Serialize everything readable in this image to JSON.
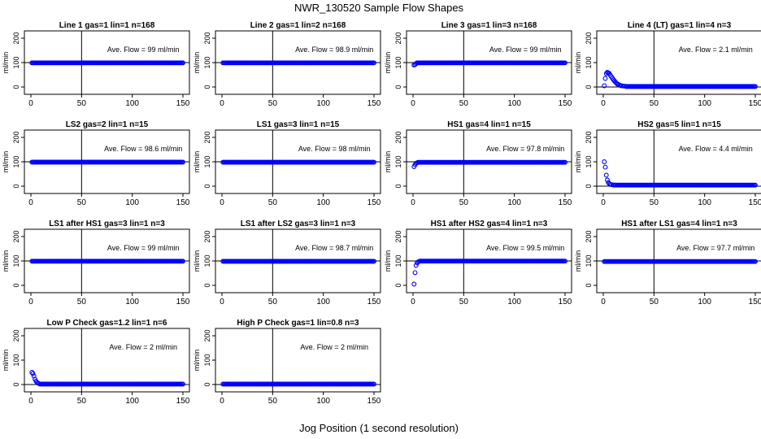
{
  "figure": {
    "title": "NWR_130520  Sample Flow Shapes",
    "xlabel": "Jog Position (1 second resolution)"
  },
  "chart_data": [
    {
      "type": "scatter",
      "title": "Line 1 gas=1 lin=1 n=168",
      "annotation": "Ave. Flow = 99  ml/min",
      "ylabel": "ml/min",
      "xlim": [
        0,
        150
      ],
      "ylim": [
        0,
        200
      ],
      "xticks": [
        0,
        50,
        100,
        150
      ],
      "yticks": [
        0,
        100,
        200
      ],
      "vline": 50,
      "hline": 100,
      "color": "#0000ff",
      "shape": "flat",
      "level": 99
    },
    {
      "type": "scatter",
      "title": "Line 2 gas=1 lin=2 n=168",
      "annotation": "Ave. Flow = 98.9  ml/min",
      "ylabel": "ml/min",
      "xlim": [
        0,
        150
      ],
      "ylim": [
        0,
        200
      ],
      "xticks": [
        0,
        50,
        100,
        150
      ],
      "yticks": [
        0,
        100,
        200
      ],
      "vline": 50,
      "hline": 100,
      "color": "#0000ff",
      "shape": "flat",
      "level": 98.9
    },
    {
      "type": "scatter",
      "title": "Line 3 gas=1 lin=3 n=168",
      "annotation": "Ave. Flow = 99  ml/min",
      "ylabel": "ml/min",
      "xlim": [
        0,
        150
      ],
      "ylim": [
        0,
        200
      ],
      "xticks": [
        0,
        50,
        100,
        150
      ],
      "yticks": [
        0,
        100,
        200
      ],
      "vline": 50,
      "hline": 100,
      "color": "#0000ff",
      "shape": "rise",
      "level": 99,
      "start": [
        {
          "x": 1,
          "y": 90
        },
        {
          "x": 2,
          "y": 92
        },
        {
          "x": 3,
          "y": 96
        }
      ]
    },
    {
      "type": "scatter",
      "title": "Line 4 (LT) gas=1 lin=4 n=3",
      "annotation": "Ave. Flow = 2.1  ml/min",
      "ylabel": "ml/min",
      "xlim": [
        0,
        150
      ],
      "ylim": [
        0,
        200
      ],
      "xticks": [
        0,
        50,
        100,
        150
      ],
      "yticks": [
        0,
        100,
        200
      ],
      "vline": 50,
      "hline": 0,
      "color": "#0000ff",
      "shape": "spike",
      "level": 2.1,
      "start": [
        {
          "x": 1,
          "y": 5
        },
        {
          "x": 2,
          "y": 35
        },
        {
          "x": 3,
          "y": 55
        },
        {
          "x": 4,
          "y": 60
        },
        {
          "x": 5,
          "y": 58
        },
        {
          "x": 6,
          "y": 55
        },
        {
          "x": 7,
          "y": 48
        },
        {
          "x": 8,
          "y": 42
        },
        {
          "x": 9,
          "y": 36
        },
        {
          "x": 10,
          "y": 30
        },
        {
          "x": 11,
          "y": 25
        },
        {
          "x": 12,
          "y": 20
        },
        {
          "x": 13,
          "y": 16
        },
        {
          "x": 14,
          "y": 12
        },
        {
          "x": 15,
          "y": 10
        },
        {
          "x": 16,
          "y": 8
        },
        {
          "x": 17,
          "y": 6
        },
        {
          "x": 18,
          "y": 5
        },
        {
          "x": 20,
          "y": 4
        },
        {
          "x": 22,
          "y": 3
        }
      ]
    },
    {
      "type": "scatter",
      "title": "LS2 gas=2 lin=1 n=15",
      "annotation": "Ave. Flow = 98.6  ml/min",
      "ylabel": "ml/min",
      "xlim": [
        0,
        150
      ],
      "ylim": [
        0,
        200
      ],
      "xticks": [
        0,
        50,
        100,
        150
      ],
      "yticks": [
        0,
        100,
        200
      ],
      "vline": 50,
      "hline": 100,
      "color": "#0000ff",
      "shape": "flat",
      "level": 98.6
    },
    {
      "type": "scatter",
      "title": "LS1 gas=3 lin=1 n=15",
      "annotation": "Ave. Flow = 98  ml/min",
      "ylabel": "ml/min",
      "xlim": [
        0,
        150
      ],
      "ylim": [
        0,
        200
      ],
      "xticks": [
        0,
        50,
        100,
        150
      ],
      "yticks": [
        0,
        100,
        200
      ],
      "vline": 50,
      "hline": 100,
      "color": "#0000ff",
      "shape": "flat",
      "level": 98
    },
    {
      "type": "scatter",
      "title": "HS1 gas=4 lin=1 n=15",
      "annotation": "Ave. Flow = 97.8  ml/min",
      "ylabel": "ml/min",
      "xlim": [
        0,
        150
      ],
      "ylim": [
        0,
        200
      ],
      "xticks": [
        0,
        50,
        100,
        150
      ],
      "yticks": [
        0,
        100,
        200
      ],
      "vline": 50,
      "hline": 100,
      "color": "#0000ff",
      "shape": "rise",
      "level": 97.8,
      "start": [
        {
          "x": 1,
          "y": 80
        },
        {
          "x": 2,
          "y": 88
        },
        {
          "x": 3,
          "y": 93
        },
        {
          "x": 4,
          "y": 96
        }
      ]
    },
    {
      "type": "scatter",
      "title": "HS2 gas=5 lin=1 n=15",
      "annotation": "Ave. Flow = 4.4  ml/min",
      "ylabel": "ml/min",
      "xlim": [
        0,
        150
      ],
      "ylim": [
        0,
        200
      ],
      "xticks": [
        0,
        50,
        100,
        150
      ],
      "yticks": [
        0,
        100,
        200
      ],
      "vline": 50,
      "hline": 0,
      "color": "#0000ff",
      "shape": "decay",
      "level": 4.4,
      "start": [
        {
          "x": 1,
          "y": 100
        },
        {
          "x": 2,
          "y": 78
        },
        {
          "x": 3,
          "y": 45
        },
        {
          "x": 4,
          "y": 25
        },
        {
          "x": 5,
          "y": 15
        },
        {
          "x": 6,
          "y": 10
        },
        {
          "x": 7,
          "y": 8
        },
        {
          "x": 8,
          "y": 6
        },
        {
          "x": 10,
          "y": 5
        }
      ]
    },
    {
      "type": "scatter",
      "title": "LS1 after HS1 gas=3 lin=1 n=3",
      "annotation": "Ave. Flow = 99  ml/min",
      "ylabel": "ml/min",
      "xlim": [
        0,
        150
      ],
      "ylim": [
        0,
        200
      ],
      "xticks": [
        0,
        50,
        100,
        150
      ],
      "yticks": [
        0,
        100,
        200
      ],
      "vline": 50,
      "hline": 100,
      "color": "#0000ff",
      "shape": "flat",
      "level": 99
    },
    {
      "type": "scatter",
      "title": "LS1 after LS2 gas=3 lin=1 n=3",
      "annotation": "Ave. Flow = 98.7  ml/min",
      "ylabel": "ml/min",
      "xlim": [
        0,
        150
      ],
      "ylim": [
        0,
        200
      ],
      "xticks": [
        0,
        50,
        100,
        150
      ],
      "yticks": [
        0,
        100,
        200
      ],
      "vline": 50,
      "hline": 100,
      "color": "#0000ff",
      "shape": "flat",
      "level": 98.7
    },
    {
      "type": "scatter",
      "title": "HS1 after HS2 gas=4 lin=1 n=3",
      "annotation": "Ave. Flow = 99.5  ml/min",
      "ylabel": "ml/min",
      "xlim": [
        0,
        150
      ],
      "ylim": [
        0,
        200
      ],
      "xticks": [
        0,
        50,
        100,
        150
      ],
      "yticks": [
        0,
        100,
        200
      ],
      "vline": 50,
      "hline": 100,
      "color": "#0000ff",
      "shape": "rise",
      "level": 99.5,
      "start": [
        {
          "x": 1,
          "y": 5
        },
        {
          "x": 2,
          "y": 52
        },
        {
          "x": 3,
          "y": 82
        },
        {
          "x": 4,
          "y": 92
        },
        {
          "x": 5,
          "y": 96
        },
        {
          "x": 6,
          "y": 98
        }
      ]
    },
    {
      "type": "scatter",
      "title": "HS1 after LS1 gas=4 lin=1 n=3",
      "annotation": "Ave. Flow = 97.7  ml/min",
      "ylabel": "ml/min",
      "xlim": [
        0,
        150
      ],
      "ylim": [
        0,
        200
      ],
      "xticks": [
        0,
        50,
        100,
        150
      ],
      "yticks": [
        0,
        100,
        200
      ],
      "vline": 50,
      "hline": 100,
      "color": "#0000ff",
      "shape": "flat",
      "level": 97.7
    },
    {
      "type": "scatter",
      "title": "Low P Check gas=1.2 lin=1 n=6",
      "annotation": "Ave. Flow = 2  ml/min",
      "ylabel": "ml/min",
      "xlim": [
        0,
        150
      ],
      "ylim": [
        0,
        200
      ],
      "xticks": [
        0,
        50,
        100,
        150
      ],
      "yticks": [
        0,
        100,
        200
      ],
      "vline": 50,
      "hline": 0,
      "color": "#0000ff",
      "shape": "decay",
      "level": 2,
      "start": [
        {
          "x": 1,
          "y": 50
        },
        {
          "x": 2,
          "y": 45
        },
        {
          "x": 3,
          "y": 35
        },
        {
          "x": 4,
          "y": 22
        },
        {
          "x": 5,
          "y": 14
        },
        {
          "x": 6,
          "y": 9
        },
        {
          "x": 7,
          "y": 6
        },
        {
          "x": 8,
          "y": 4
        }
      ]
    },
    {
      "type": "scatter",
      "title": "High P Check gas=1 lin=0.8 n=3",
      "annotation": "Ave. Flow = 2  ml/min",
      "ylabel": "ml/min",
      "xlim": [
        0,
        150
      ],
      "ylim": [
        0,
        200
      ],
      "xticks": [
        0,
        50,
        100,
        150
      ],
      "yticks": [
        0,
        100,
        200
      ],
      "vline": 50,
      "hline": 0,
      "color": "#0000ff",
      "shape": "flat",
      "level": 2
    }
  ]
}
